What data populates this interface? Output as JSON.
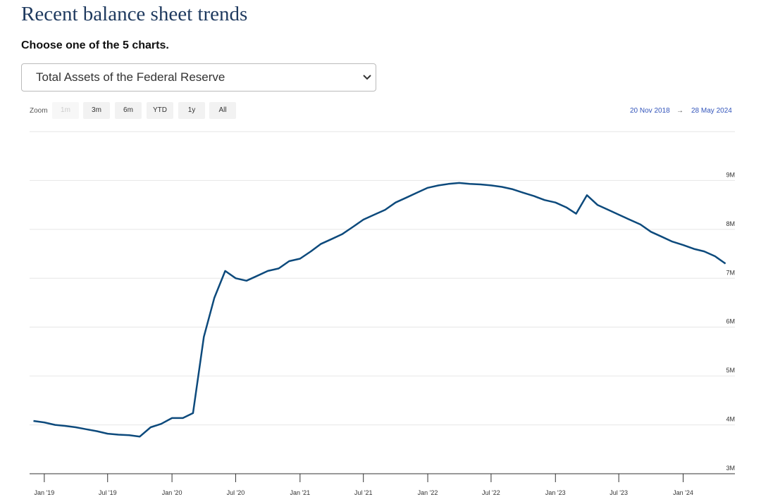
{
  "page": {
    "title": "Recent balance sheet trends",
    "subtitle": "Choose one of the 5 charts.",
    "selector": "Total Assets of the Federal Reserve",
    "zoom_label": "Zoom",
    "zoom_buttons": [
      "1m",
      "3m",
      "6m",
      "YTD",
      "1y",
      "All"
    ],
    "range_from": "20 Nov 2018",
    "range_arrow": "→",
    "range_to": "28 May 2024"
  },
  "chart_data": {
    "type": "line",
    "x": [
      "2018-12",
      "2019-01",
      "2019-02",
      "2019-03",
      "2019-04",
      "2019-05",
      "2019-06",
      "2019-07",
      "2019-08",
      "2019-09",
      "2019-10",
      "2019-11",
      "2019-12",
      "2020-01",
      "2020-02",
      "2020-03",
      "2020-04",
      "2020-05",
      "2020-06",
      "2020-07",
      "2020-08",
      "2020-09",
      "2020-10",
      "2020-11",
      "2020-12",
      "2021-01",
      "2021-02",
      "2021-03",
      "2021-04",
      "2021-05",
      "2021-06",
      "2021-07",
      "2021-08",
      "2021-09",
      "2021-10",
      "2021-11",
      "2021-12",
      "2022-01",
      "2022-02",
      "2022-03",
      "2022-04",
      "2022-05",
      "2022-06",
      "2022-07",
      "2022-08",
      "2022-09",
      "2022-10",
      "2022-11",
      "2022-12",
      "2023-01",
      "2023-02",
      "2023-03",
      "2023-04",
      "2023-05",
      "2023-06",
      "2023-07",
      "2023-08",
      "2023-09",
      "2023-10",
      "2023-11",
      "2023-12",
      "2024-01",
      "2024-02",
      "2024-03",
      "2024-04",
      "2024-05"
    ],
    "series": [
      {
        "name": "Total Assets of the Federal Reserve",
        "color": "#0d4a7c",
        "values": [
          4.08,
          4.05,
          4.0,
          3.98,
          3.95,
          3.91,
          3.87,
          3.82,
          3.8,
          3.79,
          3.76,
          3.95,
          4.02,
          4.14,
          4.14,
          4.24,
          5.8,
          6.6,
          7.15,
          7.0,
          6.95,
          7.05,
          7.15,
          7.2,
          7.35,
          7.4,
          7.55,
          7.7,
          7.8,
          7.9,
          8.05,
          8.2,
          8.3,
          8.4,
          8.55,
          8.65,
          8.75,
          8.85,
          8.9,
          8.93,
          8.95,
          8.93,
          8.92,
          8.9,
          8.87,
          8.82,
          8.75,
          8.68,
          8.6,
          8.55,
          8.45,
          8.32,
          8.7,
          8.5,
          8.4,
          8.3,
          8.2,
          8.1,
          7.95,
          7.85,
          7.75,
          7.68,
          7.6,
          7.55,
          7.45,
          7.3
        ]
      }
    ],
    "xlim": [
      "2018-11-20",
      "2024-05-28"
    ],
    "xticks": [
      {
        "value": "2019-01",
        "label": "Jan '19"
      },
      {
        "value": "2019-07",
        "label": "Jul '19"
      },
      {
        "value": "2020-01",
        "label": "Jan '20"
      },
      {
        "value": "2020-07",
        "label": "Jul '20"
      },
      {
        "value": "2021-01",
        "label": "Jan '21"
      },
      {
        "value": "2021-07",
        "label": "Jul '21"
      },
      {
        "value": "2022-01",
        "label": "Jan '22"
      },
      {
        "value": "2022-07",
        "label": "Jul '22"
      },
      {
        "value": "2023-01",
        "label": "Jan '23"
      },
      {
        "value": "2023-07",
        "label": "Jul '23"
      },
      {
        "value": "2024-01",
        "label": "Jan '24"
      }
    ],
    "ylim": [
      3,
      10
    ],
    "yticks": [
      {
        "value": 3,
        "label": "3M"
      },
      {
        "value": 4,
        "label": "4M"
      },
      {
        "value": 5,
        "label": "5M"
      },
      {
        "value": 6,
        "label": "6M"
      },
      {
        "value": 7,
        "label": "7M"
      },
      {
        "value": 8,
        "label": "8M"
      },
      {
        "value": 9,
        "label": "9M"
      }
    ],
    "grid": true
  }
}
